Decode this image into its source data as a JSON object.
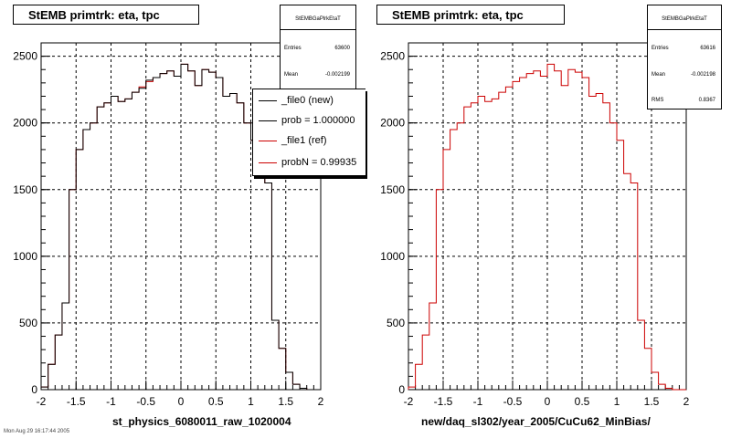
{
  "panels": [
    {
      "title": "StEMB primtrk: eta, tpc",
      "caption": "st_physics_6080011_raw_1020004",
      "stats": {
        "name": "StEMBGaPlrkEtaT",
        "rows": [
          {
            "label": "Entries",
            "value": "63600"
          },
          {
            "label": "Mean",
            "value": "-0.002199"
          }
        ]
      }
    },
    {
      "title": "StEMB primtrk: eta, tpc",
      "caption": "new/daq_sl302/year_2005/CuCu62_MinBias/",
      "stats": {
        "name": "StEMBGaPlrkEtaT",
        "rows": [
          {
            "label": "Entries",
            "value": "63616"
          },
          {
            "label": "Mean",
            "value": "-0.002198"
          },
          {
            "label": "RMS",
            "value": "0.8367"
          }
        ]
      }
    }
  ],
  "legend": [
    {
      "label": "_file0 (new)",
      "color": "#000000"
    },
    {
      "label": "prob = 1.000000",
      "color": "#000000"
    },
    {
      "label": "_file1 (ref)",
      "color": "#cc0000"
    },
    {
      "label": "probN = 0.99935",
      "color": "#cc0000"
    }
  ],
  "footer": "Mon Aug 29 16:17:44 2005",
  "colors": {
    "ref": "#cc0000",
    "new": "#000000",
    "grid": "#000000"
  },
  "chart_data": [
    {
      "type": "histogram",
      "title": "StEMB primtrk: eta, tpc",
      "xlabel": "st_physics_6080011_raw_1020004",
      "xlim": [
        -2,
        2
      ],
      "ylim": [
        0,
        2600
      ],
      "grid": true,
      "x_ticks": [
        "-2",
        "-1.5",
        "-1",
        "-0.5",
        "0",
        "0.5",
        "1",
        "1.5",
        "2"
      ],
      "y_ticks": [
        "0",
        "500",
        "1000",
        "1500",
        "2000",
        "2500"
      ],
      "bin_edges_start": -2.0,
      "bin_width": 0.1,
      "series": [
        {
          "name": "_file1 (ref)",
          "color": "#cc0000",
          "values": [
            20,
            190,
            410,
            650,
            1500,
            1800,
            1950,
            2000,
            2120,
            2150,
            2200,
            2160,
            2180,
            2230,
            2270,
            2310,
            2340,
            2370,
            2390,
            2350,
            2440,
            2390,
            2280,
            2400,
            2380,
            2340,
            2200,
            2220,
            2150,
            2000,
            1870,
            1620,
            1550,
            520,
            310,
            130,
            40,
            10,
            0,
            0
          ]
        },
        {
          "name": "_file0 (new)",
          "color": "#000000",
          "values": [
            20,
            190,
            410,
            650,
            1500,
            1800,
            1950,
            2000,
            2120,
            2150,
            2200,
            2160,
            2180,
            2230,
            2260,
            2320,
            2340,
            2370,
            2390,
            2350,
            2440,
            2390,
            2280,
            2400,
            2380,
            2340,
            2200,
            2220,
            2150,
            2000,
            1870,
            1620,
            1550,
            520,
            310,
            130,
            40,
            10,
            0,
            0
          ]
        }
      ]
    },
    {
      "type": "histogram",
      "title": "StEMB primtrk: eta, tpc",
      "xlabel": "new/daq_sl302/year_2005/CuCu62_MinBias/",
      "xlim": [
        -2,
        2
      ],
      "ylim": [
        0,
        2600
      ],
      "grid": true,
      "x_ticks": [
        "-2",
        "-1.5",
        "-1",
        "-0.5",
        "0",
        "0.5",
        "1",
        "1.5",
        "2"
      ],
      "y_ticks": [
        "0",
        "500",
        "1000",
        "1500",
        "2000",
        "2500"
      ],
      "bin_edges_start": -2.0,
      "bin_width": 0.1,
      "series": [
        {
          "name": "",
          "color": "#cc0000",
          "values": [
            20,
            190,
            410,
            650,
            1500,
            1800,
            1950,
            2000,
            2120,
            2150,
            2200,
            2160,
            2180,
            2230,
            2270,
            2310,
            2340,
            2370,
            2390,
            2350,
            2440,
            2390,
            2280,
            2400,
            2380,
            2340,
            2200,
            2220,
            2150,
            2000,
            1870,
            1620,
            1550,
            520,
            310,
            130,
            40,
            10,
            0,
            0
          ]
        }
      ]
    }
  ]
}
